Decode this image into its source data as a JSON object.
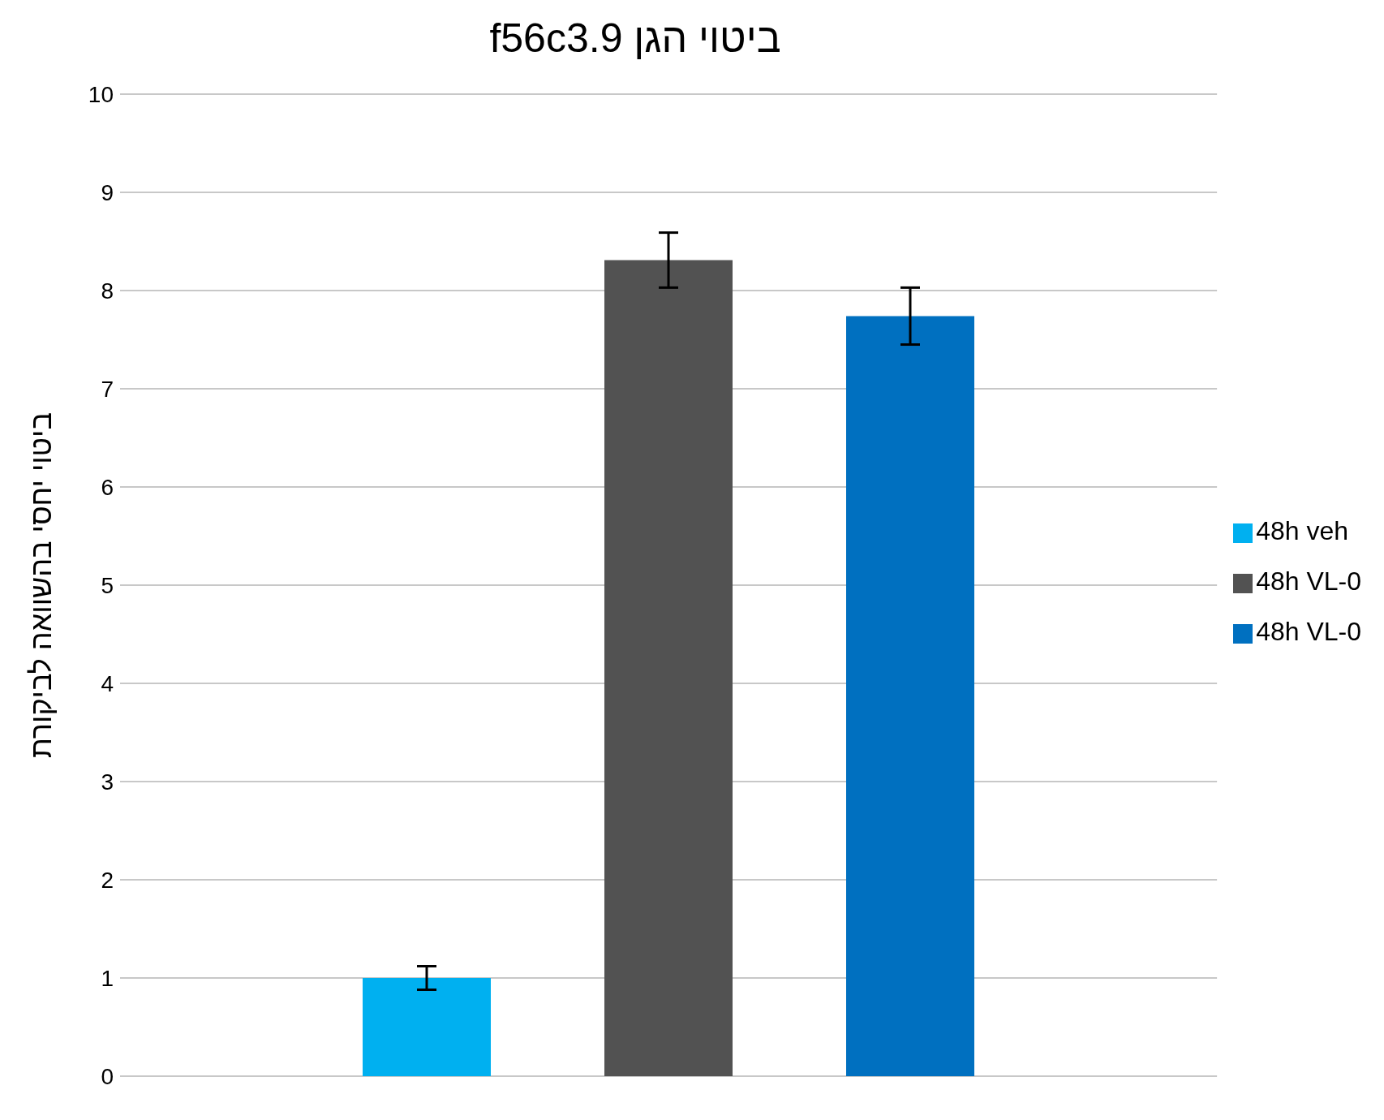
{
  "chart_data": {
    "type": "bar",
    "title": "ביטוי הגן f56c3.9",
    "ylabel": "ביטוי יחסי בהשוואה לביקורת",
    "categories": [
      null
    ],
    "series": [
      {
        "name": "48h veh",
        "color": "#00b0f0",
        "values": [
          1.0
        ],
        "errors": [
          0.12
        ]
      },
      {
        "name": "48h VL-0",
        "color": "#525252",
        "values": [
          8.31
        ],
        "errors": [
          0.28
        ]
      },
      {
        "name": "48h VL-0",
        "color": "#0070c0",
        "values": [
          7.74
        ],
        "errors": [
          0.29
        ]
      }
    ],
    "ylim": [
      0,
      10
    ],
    "yticks": [
      0,
      1,
      2,
      3,
      4,
      5,
      6,
      7,
      8,
      9,
      10
    ],
    "grid": "y",
    "legend": "right",
    "tick_labels": "y"
  }
}
